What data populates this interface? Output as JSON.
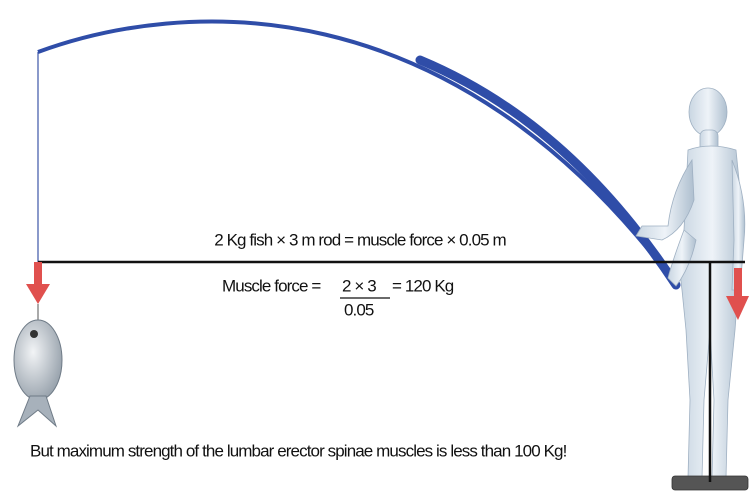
{
  "equation": "2 Kg fish × 3 m rod = muscle force × 0.05 m",
  "formula": {
    "label": "Muscle force =",
    "numerator": "2 × 3",
    "result": "= 120 Kg",
    "denominator": "0.05"
  },
  "note": "But maximum strength of the lumbar erector spinae muscles is less than 100 Kg!"
}
